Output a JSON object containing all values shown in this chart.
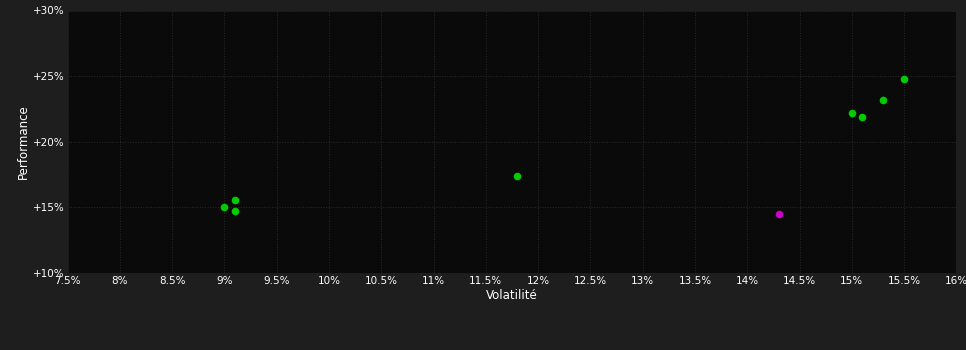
{
  "background_color": "#1e1e1e",
  "plot_bg_color": "#0a0a0a",
  "grid_color": "#2a2a2a",
  "text_color": "#ffffff",
  "xlabel": "Volatilité",
  "ylabel": "Performance",
  "xlim": [
    0.075,
    0.16
  ],
  "ylim": [
    0.1,
    0.3
  ],
  "xticks": [
    0.075,
    0.08,
    0.085,
    0.09,
    0.095,
    0.1,
    0.105,
    0.11,
    0.115,
    0.12,
    0.125,
    0.13,
    0.135,
    0.14,
    0.145,
    0.15,
    0.155,
    0.16
  ],
  "yticks": [
    0.1,
    0.15,
    0.2,
    0.25,
    0.3
  ],
  "ytick_labels": [
    "+10%",
    "+15%",
    "+20%",
    "+25%",
    "+30%"
  ],
  "xtick_labels": [
    "7.5%",
    "8%",
    "8.5%",
    "9%",
    "9.5%",
    "10%",
    "10.5%",
    "11%",
    "11.5%",
    "12%",
    "12.5%",
    "13%",
    "13.5%",
    "14%",
    "14.5%",
    "15%",
    "15.5%",
    "16%"
  ],
  "green_points": [
    [
      0.091,
      0.156
    ],
    [
      0.09,
      0.15
    ],
    [
      0.091,
      0.147
    ],
    [
      0.118,
      0.174
    ],
    [
      0.15,
      0.222
    ],
    [
      0.151,
      0.219
    ],
    [
      0.153,
      0.232
    ],
    [
      0.155,
      0.248
    ]
  ],
  "magenta_points": [
    [
      0.143,
      0.145
    ]
  ],
  "point_size": 30,
  "green_color": "#00cc00",
  "magenta_color": "#cc00cc"
}
